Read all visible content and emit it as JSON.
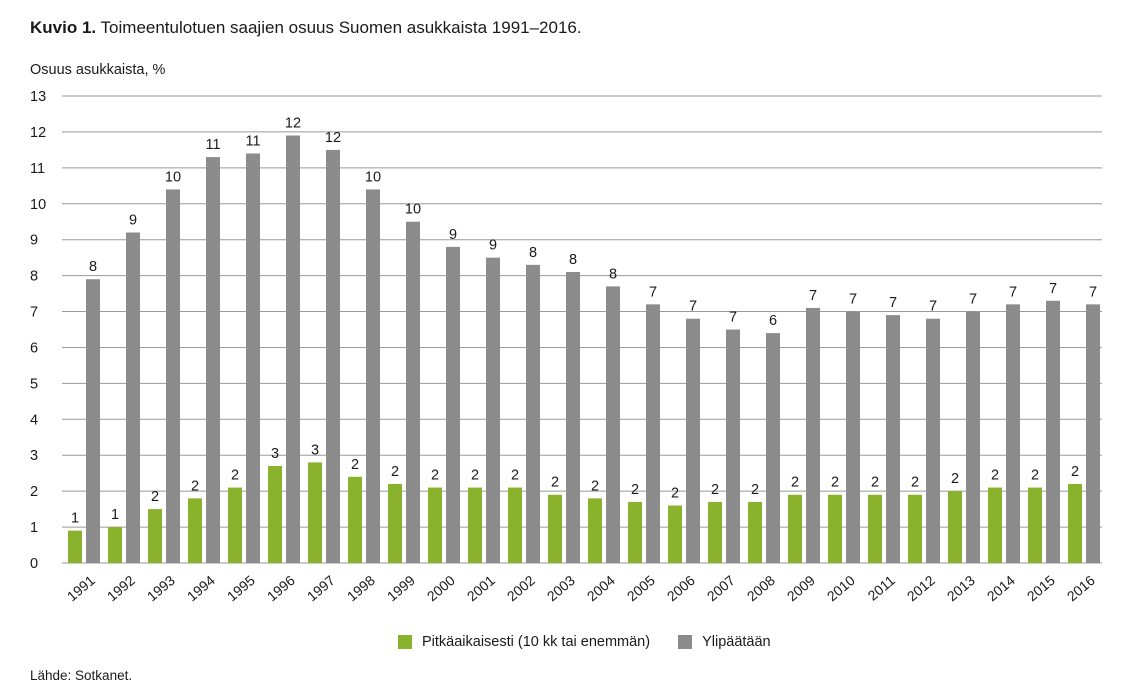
{
  "title": {
    "number": "Kuvio 1.",
    "text": "Toimeentulotuen saajien osuus Suomen asukkaista 1991–2016."
  },
  "source": "Lähde: Sotkanet.",
  "chart_data": {
    "type": "bar",
    "ylabel": "Osuus asukkaista, %",
    "ylim": [
      0,
      13
    ],
    "yticks": [
      0,
      1,
      2,
      3,
      4,
      5,
      6,
      7,
      8,
      9,
      10,
      11,
      12,
      13
    ],
    "grid": "horizontal",
    "legend_position": "bottom",
    "categories": [
      "1991",
      "1992",
      "1993",
      "1994",
      "1995",
      "1996",
      "1997",
      "1998",
      "1999",
      "2000",
      "2001",
      "2002",
      "2003",
      "2004",
      "2005",
      "2006",
      "2007",
      "2008",
      "2009",
      "2010",
      "2011",
      "2012",
      "2013",
      "2014",
      "2015",
      "2016"
    ],
    "series": [
      {
        "name": "Pitkäaikaisesti (10 kk tai enemmän)",
        "color": "#8ab32d",
        "values": [
          0.9,
          1.0,
          1.5,
          1.8,
          2.1,
          2.7,
          2.8,
          2.4,
          2.2,
          2.1,
          2.1,
          2.1,
          1.9,
          1.8,
          1.7,
          1.6,
          1.7,
          1.7,
          1.9,
          1.9,
          1.9,
          1.9,
          2.0,
          2.1,
          2.1,
          2.2
        ],
        "labels": [
          "1",
          "1",
          "2",
          "2",
          "2",
          "3",
          "3",
          "2",
          "2",
          "2",
          "2",
          "2",
          "2",
          "2",
          "2",
          "2",
          "2",
          "2",
          "2",
          "2",
          "2",
          "2",
          "2",
          "2",
          "2",
          "2"
        ]
      },
      {
        "name": "Ylipäätään",
        "color": "#8c8c8c",
        "values": [
          7.9,
          9.2,
          10.4,
          11.3,
          11.4,
          11.9,
          11.5,
          10.4,
          9.5,
          8.8,
          8.5,
          8.3,
          8.1,
          7.7,
          7.2,
          6.8,
          6.5,
          6.4,
          7.1,
          7.0,
          6.9,
          6.8,
          7.0,
          7.2,
          7.3,
          7.2
        ],
        "labels": [
          "8",
          "9",
          "10",
          "11",
          "11",
          "12",
          "12",
          "10",
          "10",
          "9",
          "9",
          "8",
          "8",
          "8",
          "7",
          "7",
          "7",
          "6",
          "7",
          "7",
          "7",
          "7",
          "7",
          "7",
          "7",
          "7"
        ]
      }
    ]
  }
}
